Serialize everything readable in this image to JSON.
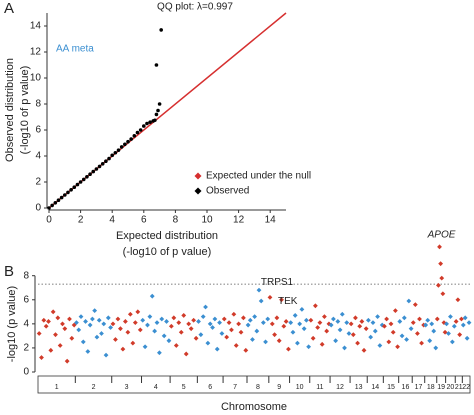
{
  "chart_data": [
    {
      "type": "qq",
      "panel": "A",
      "title": "QQ plot: λ=0.997",
      "annotation": "AA meta",
      "xlabel": [
        "Expected distribution",
        "(-log10 of p value)"
      ],
      "ylabel": [
        "Observed distribution",
        "(-log10 of p value)"
      ],
      "xlim": [
        0,
        15
      ],
      "ylim": [
        0,
        15
      ],
      "xticks": [
        0,
        2,
        4,
        6,
        8,
        10,
        12,
        14
      ],
      "yticks": [
        0,
        2,
        4,
        6,
        8,
        10,
        12,
        14
      ],
      "series": [
        {
          "name": "Expected under the null",
          "color": "#d62f2f",
          "x": [
            0,
            15
          ],
          "values": [
            0,
            15
          ]
        },
        {
          "name": "Observed",
          "color": "#000000",
          "x": [
            0,
            0.2,
            0.4,
            0.6,
            0.8,
            1,
            1.2,
            1.4,
            1.6,
            1.8,
            2,
            2.2,
            2.4,
            2.6,
            2.8,
            3,
            3.2,
            3.4,
            3.6,
            3.8,
            4,
            4.2,
            4.4,
            4.6,
            4.8,
            5,
            5.2,
            5.4,
            5.6,
            5.8,
            6,
            6.2,
            6.4,
            6.6,
            6.7,
            6.8,
            6.9,
            7,
            6.8,
            7.1
          ],
          "values": [
            0,
            0.2,
            0.4,
            0.6,
            0.8,
            1,
            1.2,
            1.4,
            1.6,
            1.8,
            2,
            2.2,
            2.4,
            2.6,
            2.8,
            3,
            3.2,
            3.4,
            3.6,
            3.8,
            4.05,
            4.25,
            4.45,
            4.7,
            4.9,
            5.1,
            5.3,
            5.55,
            5.8,
            6,
            6.3,
            6.5,
            6.6,
            6.7,
            6.75,
            7.2,
            7.5,
            8,
            11,
            13.7
          ]
        }
      ]
    },
    {
      "type": "manhattan",
      "panel": "B",
      "ylabel": "-log10 (p value)",
      "xlabel": "Chromosome",
      "ylim": [
        0,
        10.8
      ],
      "yticks": [
        0,
        2,
        4,
        6,
        8
      ],
      "threshold": 7.3,
      "colors": [
        "#d13b2a",
        "#3b8fd1"
      ],
      "categories": [
        "1",
        "2",
        "3",
        "4",
        "5",
        "6",
        "7",
        "8",
        "9",
        "10",
        "11",
        "12",
        "13",
        "14",
        "15",
        "16",
        "17",
        "18",
        "19",
        "20",
        "21",
        "22"
      ],
      "values": [
        [
          3.2,
          1.2,
          4.3,
          3.8,
          4.2,
          1.8,
          5.0,
          3.1,
          4.5,
          2.2,
          4.0,
          3.6,
          0.9,
          4.4,
          2.8,
          3.9
        ],
        [
          4.1,
          3.5,
          4.6,
          2.5,
          4.2,
          1.7,
          3.9,
          4.4,
          5.1,
          2.9,
          4.3,
          3.2,
          4.0,
          1.4,
          4.5,
          3.7
        ],
        [
          4.0,
          2.7,
          4.4,
          3.6,
          1.9,
          4.2,
          3.3,
          4.8,
          2.4,
          4.1,
          5.0,
          3.5
        ],
        [
          4.3,
          2.1,
          3.9,
          4.6,
          6.3,
          3.4,
          4.1,
          1.6,
          4.4,
          3.0,
          4.2,
          2.6
        ],
        [
          3.8,
          4.5,
          2.2,
          4.1,
          3.3,
          4.7,
          1.5,
          4.0,
          3.6,
          4.3,
          2.8
        ],
        [
          4.2,
          3.1,
          4.6,
          5.4,
          2.4,
          4.0,
          3.7,
          4.4,
          1.9,
          4.1,
          3.2
        ],
        [
          4.4,
          2.9,
          4.1,
          3.5,
          4.8,
          2.2,
          4.0,
          3.3,
          4.5,
          1.8
        ],
        [
          3.9,
          4.3,
          2.7,
          4.6,
          3.4,
          6.8,
          5.9,
          4.1,
          2.5,
          4.4
        ],
        [
          6.2,
          4.0,
          3.1,
          4.5,
          2.6,
          6.0,
          3.8,
          4.2,
          1.9
        ],
        [
          4.1,
          3.3,
          4.7,
          2.4,
          4.0,
          5.2,
          3.6,
          4.3,
          2.1
        ],
        [
          4.3,
          2.8,
          5.5,
          3.7,
          4.1,
          2.3,
          4.6,
          3.4,
          4.0
        ],
        [
          3.9,
          4.4,
          2.6,
          4.2,
          3.5,
          4.8,
          2.0,
          4.1,
          3.2
        ],
        [
          4.0,
          3.1,
          4.5,
          2.4,
          3.8,
          4.2,
          1.8,
          3.6
        ],
        [
          4.3,
          2.9,
          4.1,
          3.4,
          4.6,
          2.2,
          3.9
        ],
        [
          3.8,
          4.4,
          2.5,
          4.0,
          3.3,
          5.1,
          2.1
        ],
        [
          4.2,
          3.0,
          4.5,
          2.7,
          5.9,
          3.6
        ],
        [
          4.1,
          5.6,
          3.2,
          4.4,
          2.4,
          3.9
        ],
        [
          3.9,
          4.3,
          2.6,
          4.0,
          3.4,
          2.0
        ],
        [
          4.4,
          7.2,
          10.4,
          9.0,
          7.8,
          6.5,
          4.1,
          3.3
        ],
        [
          4.0,
          3.2,
          4.6,
          2.5,
          3.8
        ],
        [
          4.2,
          6.0,
          3.1,
          4.4
        ],
        [
          3.9,
          4.5,
          2.8,
          4.1
        ]
      ],
      "annotations": [
        {
          "text": "APOE",
          "color": "#222222"
        },
        {
          "text": "TRPS1",
          "color": "#3b8fd1"
        },
        {
          "text": "TEK",
          "color": "#3b8fd1"
        }
      ]
    }
  ]
}
